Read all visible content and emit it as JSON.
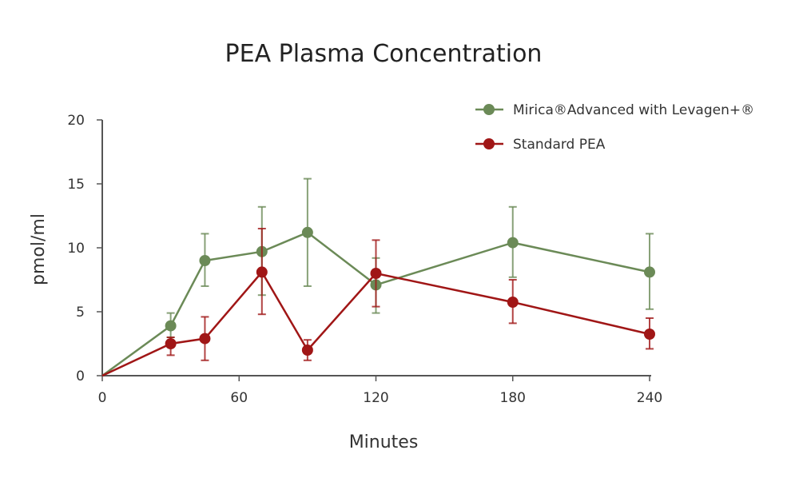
{
  "chart_data": {
    "type": "line",
    "title": "PEA Plasma Concentration",
    "xlabel": "Minutes",
    "ylabel": "pmol/ml",
    "xlim": [
      0,
      240
    ],
    "ylim": [
      0,
      20
    ],
    "xticks": [
      0,
      60,
      120,
      180,
      240
    ],
    "yticks": [
      0,
      5,
      10,
      15,
      20
    ],
    "grid": false,
    "legend_position": "top-right",
    "x": [
      0,
      30,
      45,
      70,
      90,
      120,
      180,
      240
    ],
    "series": [
      {
        "name": "Mirica®Advanced with Levagen+®",
        "color": "#6b8a57",
        "values": [
          0,
          3.9,
          9.0,
          9.7,
          11.2,
          7.1,
          10.4,
          8.1
        ],
        "error_upper": [
          null,
          4.9,
          11.1,
          13.2,
          15.4,
          9.2,
          13.2,
          11.1
        ],
        "error_lower": [
          null,
          3.0,
          7.0,
          6.3,
          7.0,
          4.9,
          7.7,
          5.2
        ]
      },
      {
        "name": "Standard PEA",
        "color": "#a01616",
        "values": [
          0,
          2.5,
          2.9,
          8.1,
          2.0,
          8.0,
          5.75,
          3.25
        ],
        "error_upper": [
          null,
          3.0,
          4.6,
          11.5,
          2.8,
          10.6,
          7.5,
          4.5
        ],
        "error_lower": [
          null,
          1.6,
          1.2,
          4.8,
          1.2,
          5.4,
          4.1,
          2.1
        ]
      }
    ]
  }
}
